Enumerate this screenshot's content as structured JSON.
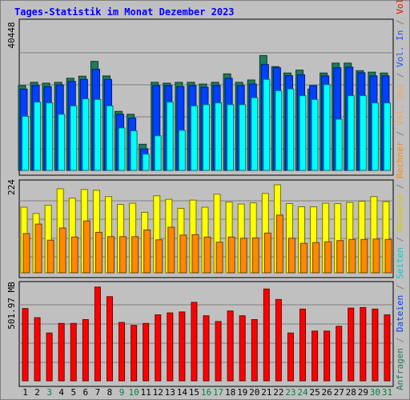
{
  "title": "Tages-Statistik im Monat Dezember 2023",
  "chart_data": [
    {
      "type": "bar",
      "categories": [
        "1",
        "2",
        "3",
        "4",
        "5",
        "6",
        "7",
        "8",
        "9",
        "10",
        "11",
        "12",
        "13",
        "14",
        "15",
        "16",
        "17",
        "18",
        "19",
        "20",
        "21",
        "22",
        "23",
        "24",
        "25",
        "26",
        "27",
        "28",
        "29",
        "30",
        "31"
      ],
      "ymax_label": "40448",
      "ymax": 40448,
      "series": [
        {
          "name": "Anfragen",
          "color": "#1e7c5c",
          "values": [
            29200,
            30300,
            30000,
            30300,
            31700,
            32400,
            37500,
            32500,
            20300,
            19300,
            9000,
            30300,
            30000,
            30300,
            30300,
            29700,
            30300,
            33200,
            30300,
            31100,
            39500,
            35700,
            33500,
            34500,
            28000,
            33500,
            36900,
            36900,
            34300,
            33800,
            33500
          ]
        },
        {
          "name": "Dateien",
          "color": "#0040ff",
          "values": [
            28000,
            29200,
            28800,
            29400,
            30600,
            31300,
            34800,
            31300,
            19300,
            18000,
            7400,
            29200,
            29200,
            28800,
            29200,
            28600,
            29200,
            31700,
            29200,
            29700,
            36400,
            35300,
            32600,
            32900,
            29200,
            32500,
            35300,
            35500,
            33600,
            32500,
            32500
          ]
        },
        {
          "name": "Seiten",
          "color": "#00ffff",
          "values": [
            18600,
            23500,
            23200,
            19300,
            22200,
            24600,
            24400,
            22200,
            14600,
            13600,
            5600,
            11900,
            23500,
            13800,
            22200,
            22600,
            23200,
            22600,
            22600,
            25000,
            31300,
            27400,
            28000,
            25700,
            24400,
            29500,
            17600,
            25700,
            25700,
            23200,
            23200
          ]
        }
      ]
    },
    {
      "type": "bar",
      "categories": [
        "1",
        "2",
        "3",
        "4",
        "5",
        "6",
        "7",
        "8",
        "9",
        "10",
        "11",
        "12",
        "13",
        "14",
        "15",
        "16",
        "17",
        "18",
        "19",
        "20",
        "21",
        "22",
        "23",
        "24",
        "25",
        "26",
        "27",
        "28",
        "29",
        "30",
        "31"
      ],
      "ymax_label": "224",
      "ymax": 224,
      "series": [
        {
          "name": "Besuche",
          "color": "#ffff00",
          "values": [
            167,
            151,
            172,
            214,
            190,
            212,
            210,
            194,
            174,
            177,
            154,
            196,
            187,
            164,
            185,
            167,
            200,
            180,
            175,
            178,
            202,
            224,
            176,
            168,
            168,
            177,
            176,
            179,
            182,
            194,
            181
          ]
        },
        {
          "name": "Rechner",
          "color": "#ff8800",
          "values": [
            100,
            124,
            83,
            114,
            91,
            132,
            103,
            92,
            92,
            92,
            109,
            84,
            116,
            96,
            97,
            91,
            78,
            91,
            88,
            89,
            101,
            147,
            88,
            75,
            77,
            79,
            82,
            85,
            85,
            86,
            85
          ]
        }
      ]
    },
    {
      "type": "bar",
      "categories": [
        "1",
        "2",
        "3",
        "4",
        "5",
        "6",
        "7",
        "8",
        "9",
        "10",
        "11",
        "12",
        "13",
        "14",
        "15",
        "16",
        "17",
        "18",
        "19",
        "20",
        "21",
        "22",
        "23",
        "24",
        "25",
        "26",
        "27",
        "28",
        "29",
        "30",
        "31"
      ],
      "ymax_label": "501.97 MB",
      "ymax": 501.97,
      "series": [
        {
          "name": "Volumen",
          "color": "#ff0000",
          "values": [
            378,
            330,
            250,
            300,
            300,
            320,
            490,
            440,
            305,
            290,
            300,
            345,
            355,
            360,
            410,
            340,
            310,
            365,
            340,
            320,
            480,
            425,
            250,
            375,
            260,
            260,
            285,
            380,
            383,
            375,
            345
          ]
        }
      ]
    }
  ],
  "right_labels": [
    {
      "text": "Anfragen",
      "color": "#1e7c5c"
    },
    {
      "text": " / ",
      "color": "#808080"
    },
    {
      "text": "Dateien",
      "color": "#0040ff"
    },
    {
      "text": " / ",
      "color": "#808080"
    },
    {
      "text": "Seiten",
      "color": "#00cccc"
    },
    {
      "text": " / ",
      "color": "#808080"
    },
    {
      "text": "Besuche",
      "color": "#d8c800"
    },
    {
      "text": " / ",
      "color": "#808080"
    },
    {
      "text": "Rechner",
      "color": "#ff8800"
    },
    {
      "text": " / ",
      "color": "#808080"
    },
    {
      "text": "Vol. Out",
      "color": "#ff9f50"
    },
    {
      "text": " / ",
      "color": "#808080"
    },
    {
      "text": "Vol. In",
      "color": "#2050ff"
    },
    {
      "text": " / ",
      "color": "#808080"
    },
    {
      "text": "Volumen",
      "color": "#ff0000"
    }
  ],
  "weekend_days": [
    3,
    9,
    10,
    16,
    17,
    23,
    24,
    30,
    31
  ],
  "weekend_color": "#008040",
  "weekday_color": "#000000"
}
